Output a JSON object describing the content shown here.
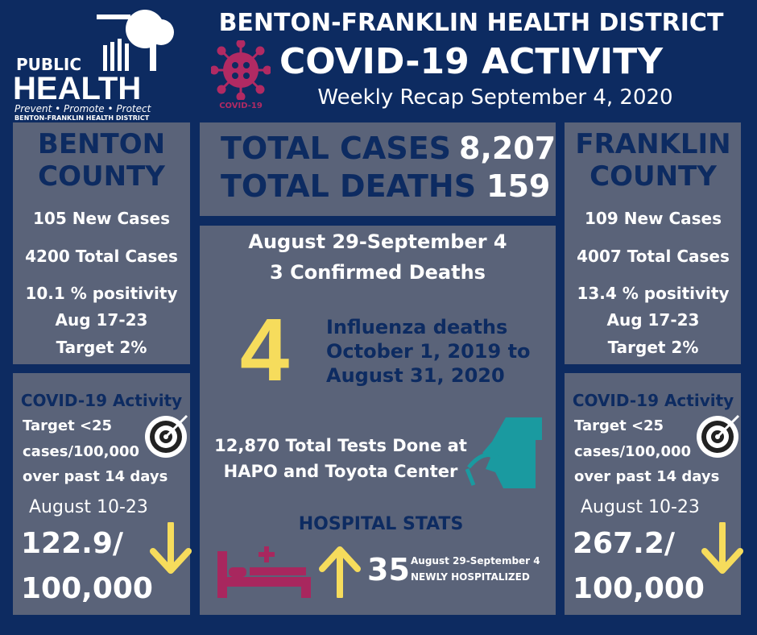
{
  "header": {
    "logo": {
      "line1": "PUBLIC",
      "line2": "HEALTH",
      "tagline": "Prevent • Promote • Protect",
      "org": "BENTON-FRANKLIN HEALTH DISTRICT"
    },
    "virus_label": "COVID-19",
    "district": "BENTON-FRANKLIN HEALTH DISTRICT",
    "title": "COVID-19 ACTIVITY",
    "subtitle": "Weekly Recap September 4, 2020"
  },
  "totals": {
    "cases_label": "TOTAL CASES",
    "cases": "8,207",
    "deaths_label": "TOTAL DEATHS",
    "deaths": "159"
  },
  "counties": [
    {
      "name": [
        "BENTON",
        "COUNTY"
      ],
      "new_cases": "105 New Cases",
      "total_cases": "4200 Total Cases",
      "positivity": "10.1 % positivity",
      "positivity_period": "Aug 17-23",
      "target": "Target 2%",
      "activity_title": "COVID-19 Activity",
      "activity_target": [
        "Target  <25",
        "cases/100,000",
        "over past 14 days"
      ],
      "period": "August 10-23",
      "rate": [
        "122.9/",
        "100,000"
      ]
    },
    {
      "name": [
        "FRANKLIN",
        "COUNTY"
      ],
      "new_cases": "109 New Cases",
      "total_cases": "4007 Total Cases",
      "positivity": "13.4 % positivity",
      "positivity_period": "Aug 17-23",
      "target": "Target 2%",
      "activity_title": "COVID-19 Activity",
      "activity_target": [
        "Target  <25",
        "cases/100,000",
        "over past 14 days"
      ],
      "period": "August 10-23",
      "rate": [
        "267.2/",
        "100,000"
      ]
    }
  ],
  "weekly": {
    "period": "August 29-September 4",
    "deaths": "3 Confirmed Deaths"
  },
  "influenza": {
    "count": "4",
    "text": [
      "Influenza deaths",
      "October 1, 2019 to",
      "August 31, 2020"
    ]
  },
  "tests": [
    "12,870 Total Tests Done at",
    "HAPO and Toyota Center"
  ],
  "hospital": {
    "title": "HOSPITAL STATS",
    "count": "35",
    "period": "August 29-September 4",
    "label": "NEWLY HOSPITALIZED"
  }
}
